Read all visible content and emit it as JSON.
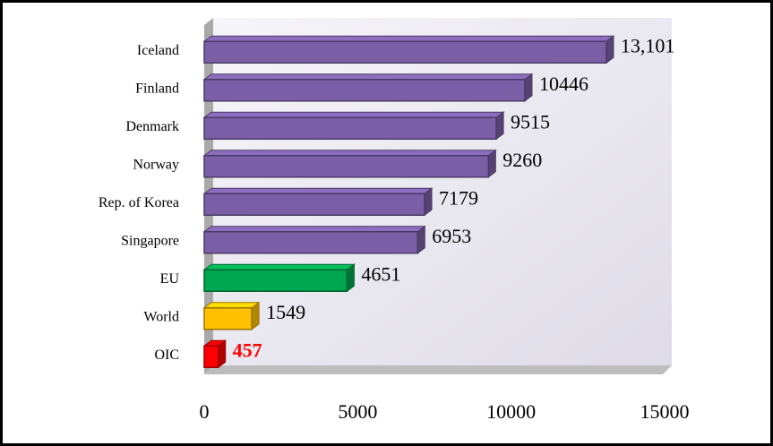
{
  "chart_data": {
    "type": "bar3d_horizontal",
    "categories": [
      "Iceland",
      "Finland",
      "Denmark",
      "Norway",
      "Rep. of Korea",
      "Singapore",
      "EU",
      "World",
      "OIC"
    ],
    "values": [
      13101,
      10446,
      9515,
      9260,
      7179,
      6953,
      4651,
      1549,
      457
    ],
    "value_labels": [
      "13,101",
      "10446",
      "9515",
      "9260",
      "7179",
      "6953",
      "4651",
      "1549",
      "457"
    ],
    "colors": [
      "#7b5fa6",
      "#7b5fa6",
      "#7b5fa6",
      "#7b5fa6",
      "#7b5fa6",
      "#7b5fa6",
      "#00a650",
      "#ffc000",
      "#ff0000"
    ],
    "xlim": [
      0,
      15000
    ],
    "xticks": [
      0,
      5000,
      10000,
      15000
    ],
    "grid": false
  }
}
